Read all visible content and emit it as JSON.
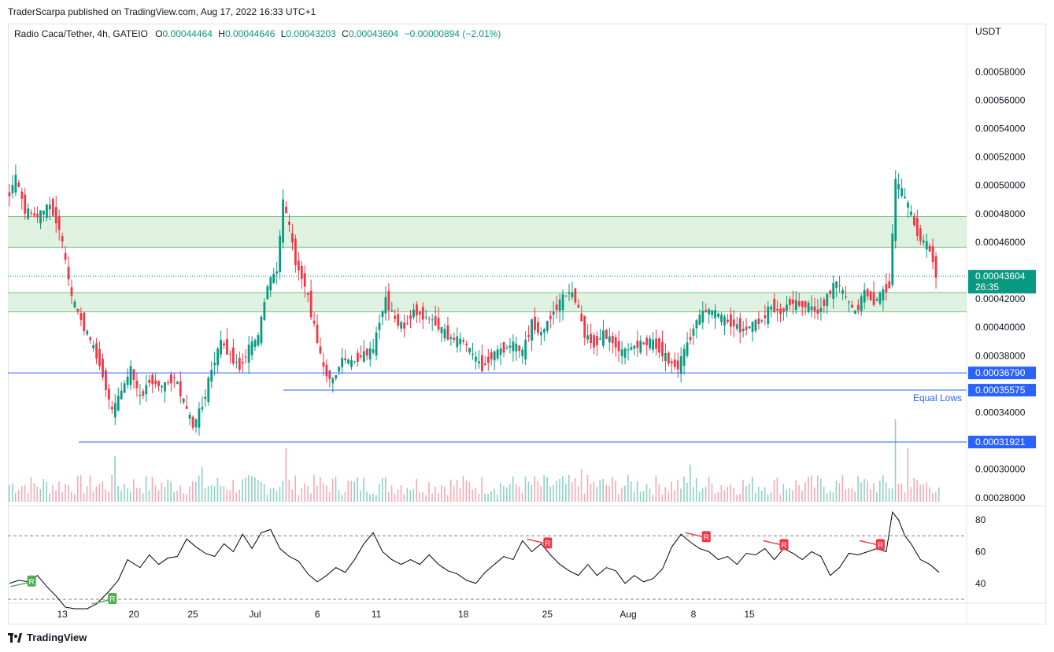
{
  "header": {
    "published": "TraderScarpa published on TradingView.com, Aug 17, 2022 16:33 UTC+1"
  },
  "legend": {
    "symbol": "Radio Caca/Tether, 4h, GATEIO",
    "o_label": "O",
    "o_value": "0.00044464",
    "h_label": "H",
    "h_value": "0.00044646",
    "l_label": "L",
    "l_value": "0.00043203",
    "c_label": "C",
    "c_value": "0.00043604",
    "change": "−0.00000894 (−2.01%)"
  },
  "brand": {
    "name": "TradingView"
  },
  "colors": {
    "up": "#089981",
    "down": "#f23645",
    "zone_fill": "#dff2e1",
    "zone_line": "#4caf50",
    "level_line": "#2962ff",
    "label_bg": "#2962ff",
    "price_bg": "#089981",
    "vol_up": "#8fd1c4",
    "vol_down": "#f7a9b3",
    "rsi": "#000000",
    "div_bear": "#f23645",
    "div_bull": "#4caf50"
  },
  "chart_data": {
    "type": "candlestick",
    "price_axis": {
      "currency": "USDT",
      "ticks": [
        "0.00058000",
        "0.00056000",
        "0.00054000",
        "0.00052000",
        "0.00050000",
        "0.00048000",
        "0.00046000",
        "0.00042000",
        "0.00040000",
        "0.00038000",
        "0.00034000",
        "0.00030000",
        "0.00028000"
      ],
      "range": [
        0.000276,
        0.000604
      ]
    },
    "time_axis": {
      "ticks": [
        "13",
        "20",
        "25",
        "Jul",
        "6",
        "11",
        "18",
        "25",
        "Aug",
        "8",
        "15"
      ]
    },
    "last_price": {
      "value": "0.00043604",
      "countdown": "26:35"
    },
    "levels": [
      {
        "label": "0.00036790",
        "value": 0.0003679
      },
      {
        "label": "0.00035575",
        "value": 0.00035575,
        "note": "Equal Lows"
      },
      {
        "label": "0.00031921",
        "value": 0.00031921
      }
    ],
    "zones": [
      {
        "top": 0.000478,
        "bottom": 0.0004565
      },
      {
        "top": 0.0004245,
        "bottom": 0.000411
      }
    ],
    "price_path": [
      [
        0,
        0.00049
      ],
      [
        3,
        0.000505
      ],
      [
        6,
        0.000482
      ],
      [
        10,
        0.000478
      ],
      [
        14,
        0.000486
      ],
      [
        17,
        0.00047
      ],
      [
        21,
        0.00042
      ],
      [
        26,
        0.000395
      ],
      [
        30,
        0.000375
      ],
      [
        34,
        0.00034
      ],
      [
        37,
        0.000355
      ],
      [
        40,
        0.00037
      ],
      [
        43,
        0.00035
      ],
      [
        46,
        0.000363
      ],
      [
        50,
        0.000358
      ],
      [
        54,
        0.000365
      ],
      [
        57,
        0.000347
      ],
      [
        60,
        0.00033
      ],
      [
        63,
        0.000345
      ],
      [
        66,
        0.00037
      ],
      [
        69,
        0.00039
      ],
      [
        72,
        0.00038
      ],
      [
        75,
        0.000372
      ],
      [
        78,
        0.000385
      ],
      [
        81,
        0.000393
      ],
      [
        84,
        0.00043
      ],
      [
        87,
        0.00044
      ],
      [
        89,
        0.000488
      ],
      [
        91,
        0.00047
      ],
      [
        93,
        0.000446
      ],
      [
        96,
        0.00043
      ],
      [
        99,
        0.0004
      ],
      [
        102,
        0.00037
      ],
      [
        105,
        0.000362
      ],
      [
        108,
        0.000378
      ],
      [
        111,
        0.000375
      ],
      [
        114,
        0.00038
      ],
      [
        118,
        0.000384
      ],
      [
        120,
        0.000405
      ],
      [
        122,
        0.00042
      ],
      [
        125,
        0.000405
      ],
      [
        128,
        0.0004
      ],
      [
        131,
        0.000412
      ],
      [
        134,
        0.000408
      ],
      [
        137,
        0.000405
      ],
      [
        140,
        0.000398
      ],
      [
        143,
        0.000392
      ],
      [
        147,
        0.00039
      ],
      [
        150,
        0.00038
      ],
      [
        153,
        0.000372
      ],
      [
        156,
        0.00038
      ],
      [
        159,
        0.000384
      ],
      [
        163,
        0.000388
      ],
      [
        166,
        0.000382
      ],
      [
        169,
        0.000403
      ],
      [
        172,
        0.000395
      ],
      [
        175,
        0.000408
      ],
      [
        178,
        0.000418
      ],
      [
        181,
        0.000425
      ],
      [
        183,
        0.00042
      ],
      [
        186,
        0.000395
      ],
      [
        189,
        0.000388
      ],
      [
        192,
        0.000395
      ],
      [
        195,
        0.00039
      ],
      [
        198,
        0.000382
      ],
      [
        201,
        0.000386
      ],
      [
        204,
        0.000388
      ],
      [
        207,
        0.00039
      ],
      [
        210,
        0.000385
      ],
      [
        213,
        0.000376
      ],
      [
        216,
        0.000372
      ],
      [
        219,
        0.000388
      ],
      [
        222,
        0.000405
      ],
      [
        225,
        0.000412
      ],
      [
        228,
        0.00041
      ],
      [
        231,
        0.000405
      ],
      [
        234,
        0.000402
      ],
      [
        237,
        0.000398
      ],
      [
        240,
        0.000402
      ],
      [
        243,
        0.000405
      ],
      [
        246,
        0.000415
      ],
      [
        249,
        0.00041
      ],
      [
        252,
        0.000418
      ],
      [
        255,
        0.000416
      ],
      [
        258,
        0.000415
      ],
      [
        261,
        0.00041
      ],
      [
        264,
        0.000422
      ],
      [
        267,
        0.000432
      ],
      [
        270,
        0.00042
      ],
      [
        273,
        0.00041
      ],
      [
        276,
        0.000425
      ],
      [
        279,
        0.000418
      ],
      [
        282,
        0.000425
      ],
      [
        284,
        0.00043
      ],
      [
        286,
        0.000502
      ],
      [
        288,
        0.000495
      ],
      [
        290,
        0.000485
      ],
      [
        292,
        0.000472
      ],
      [
        294,
        0.000462
      ],
      [
        296,
        0.000458
      ],
      [
        298,
        0.000448
      ],
      [
        299,
        0.000436
      ]
    ],
    "volume_spikes": [
      [
        34,
        0.55
      ],
      [
        62,
        0.42
      ],
      [
        89,
        0.65
      ],
      [
        184,
        0.4
      ],
      [
        219,
        0.45
      ],
      [
        285,
        1.0
      ],
      [
        289,
        0.65
      ]
    ],
    "rsi": {
      "ticks": [
        "80",
        "60",
        "40"
      ],
      "range": [
        28,
        88
      ],
      "overbought": 70,
      "oversold": 30,
      "path": [
        [
          0,
          40
        ],
        [
          3,
          42
        ],
        [
          6,
          41
        ],
        [
          9,
          45
        ],
        [
          12,
          38
        ],
        [
          15,
          32
        ],
        [
          18,
          25
        ],
        [
          21,
          20
        ],
        [
          25,
          20
        ],
        [
          28,
          27
        ],
        [
          32,
          35
        ],
        [
          35,
          42
        ],
        [
          38,
          55
        ],
        [
          42,
          50
        ],
        [
          45,
          58
        ],
        [
          48,
          52
        ],
        [
          51,
          56
        ],
        [
          54,
          57
        ],
        [
          57,
          68
        ],
        [
          60,
          63
        ],
        [
          63,
          59
        ],
        [
          66,
          57
        ],
        [
          69,
          65
        ],
        [
          72,
          60
        ],
        [
          75,
          71
        ],
        [
          78,
          62
        ],
        [
          81,
          72
        ],
        [
          84,
          74
        ],
        [
          87,
          62
        ],
        [
          90,
          57
        ],
        [
          93,
          54
        ],
        [
          96,
          46
        ],
        [
          99,
          41
        ],
        [
          102,
          45
        ],
        [
          105,
          50
        ],
        [
          108,
          47
        ],
        [
          111,
          55
        ],
        [
          114,
          65
        ],
        [
          117,
          72
        ],
        [
          120,
          60
        ],
        [
          123,
          55
        ],
        [
          126,
          52
        ],
        [
          129,
          55
        ],
        [
          132,
          52
        ],
        [
          135,
          58
        ],
        [
          138,
          52
        ],
        [
          141,
          48
        ],
        [
          144,
          46
        ],
        [
          147,
          42
        ],
        [
          150,
          40
        ],
        [
          153,
          47
        ],
        [
          156,
          52
        ],
        [
          159,
          57
        ],
        [
          162,
          55
        ],
        [
          165,
          67
        ],
        [
          168,
          60
        ],
        [
          171,
          65
        ],
        [
          174,
          58
        ],
        [
          177,
          52
        ],
        [
          180,
          48
        ],
        [
          183,
          45
        ],
        [
          186,
          52
        ],
        [
          189,
          45
        ],
        [
          192,
          50
        ],
        [
          195,
          48
        ],
        [
          198,
          40
        ],
        [
          201,
          45
        ],
        [
          204,
          41
        ],
        [
          207,
          43
        ],
        [
          210,
          49
        ],
        [
          213,
          63
        ],
        [
          216,
          71
        ],
        [
          219,
          66
        ],
        [
          222,
          62
        ],
        [
          225,
          60
        ],
        [
          228,
          55
        ],
        [
          231,
          57
        ],
        [
          234,
          52
        ],
        [
          237,
          59
        ],
        [
          240,
          58
        ],
        [
          243,
          62
        ],
        [
          246,
          55
        ],
        [
          249,
          62
        ],
        [
          252,
          59
        ],
        [
          255,
          55
        ],
        [
          258,
          60
        ],
        [
          261,
          57
        ],
        [
          264,
          45
        ],
        [
          267,
          50
        ],
        [
          270,
          59
        ],
        [
          273,
          58
        ],
        [
          276,
          60
        ],
        [
          279,
          62
        ],
        [
          282,
          60
        ],
        [
          284,
          85
        ],
        [
          286,
          80
        ],
        [
          288,
          70
        ],
        [
          290,
          65
        ],
        [
          293,
          55
        ],
        [
          296,
          52
        ],
        [
          299,
          47
        ]
      ]
    },
    "divergence_labels": [
      {
        "kind": "bear",
        "text": "R",
        "x": 173,
        "y": 65
      },
      {
        "kind": "bear",
        "text": "R",
        "x": 224,
        "y": 69
      },
      {
        "kind": "bear",
        "text": "R",
        "x": 249,
        "y": 64
      },
      {
        "kind": "bear",
        "text": "R",
        "x": 280,
        "y": 64
      },
      {
        "kind": "bull",
        "text": "R",
        "x": 7,
        "y": 41
      },
      {
        "kind": "bull",
        "text": "R",
        "x": 33,
        "y": 30
      }
    ]
  }
}
